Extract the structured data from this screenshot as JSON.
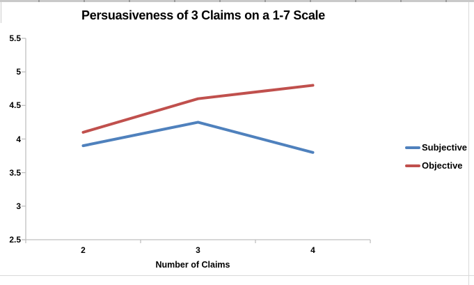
{
  "chart_data": {
    "type": "line",
    "title": "Persuasiveness of 3 Claims on a 1-7 Scale",
    "xlabel": "Number of Claims",
    "ylabel": "",
    "categories": [
      "2",
      "3",
      "4"
    ],
    "series": [
      {
        "name": "Subjective",
        "color": "#4F81BD",
        "values": [
          3.9,
          4.25,
          3.8
        ]
      },
      {
        "name": "Objective",
        "color": "#C0504D",
        "values": [
          4.1,
          4.6,
          4.8
        ]
      }
    ],
    "ylim": [
      2.5,
      5.5
    ],
    "ytick_step": 0.5,
    "grid": false,
    "legend_position": "right",
    "axis_color": "#BFBFBF",
    "background_color": "#FFFFFF",
    "line_width": 4
  }
}
